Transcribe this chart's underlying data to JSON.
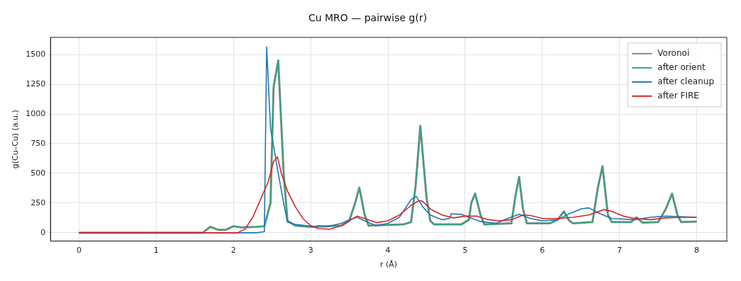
{
  "chart_data": {
    "type": "line",
    "title": "Cu MRO — pairwise g(r)",
    "xlabel": "r (Å)",
    "ylabel": "g(Cu–Cu) (a.u.)",
    "xlim": [
      -0.37,
      8.39
    ],
    "ylim": [
      -70,
      1645
    ],
    "xticks": [
      0,
      1,
      2,
      3,
      4,
      5,
      6,
      7,
      8
    ],
    "yticks": [
      0,
      250,
      500,
      750,
      1000,
      1250,
      1500
    ],
    "grid": true,
    "legend": "top right",
    "marker": "none",
    "line_style": "solid",
    "series": [
      {
        "name": "Voronoi",
        "color": "#888888",
        "x": [
          0,
          1.6,
          1.7,
          1.8,
          1.9,
          2.0,
          2.1,
          2.3,
          2.4,
          2.48,
          2.52,
          2.58,
          2.65,
          2.7,
          2.8,
          3.0,
          3.4,
          3.5,
          3.58,
          3.63,
          3.7,
          3.75,
          4.2,
          4.3,
          4.36,
          4.42,
          4.5,
          4.55,
          4.6,
          4.95,
          5.05,
          5.08,
          5.13,
          5.2,
          5.25,
          5.6,
          5.65,
          5.7,
          5.75,
          5.8,
          6.1,
          6.2,
          6.28,
          6.35,
          6.4,
          6.65,
          6.72,
          6.78,
          6.85,
          6.9,
          7.15,
          7.22,
          7.3,
          7.5,
          7.6,
          7.68,
          7.75,
          7.8,
          8.0
        ],
        "values": [
          0,
          0,
          50,
          25,
          25,
          55,
          45,
          50,
          55,
          250,
          1230,
          1450,
          500,
          100,
          60,
          50,
          60,
          100,
          260,
          380,
          150,
          60,
          70,
          90,
          400,
          900,
          300,
          100,
          70,
          70,
          110,
          250,
          330,
          150,
          70,
          80,
          300,
          470,
          200,
          80,
          80,
          110,
          180,
          100,
          80,
          90,
          380,
          560,
          150,
          90,
          90,
          130,
          85,
          90,
          200,
          330,
          150,
          90,
          95
        ]
      },
      {
        "name": "after orient",
        "color": "#2ca87a",
        "x": [
          0,
          1.6,
          1.7,
          1.8,
          1.9,
          2.0,
          2.1,
          2.3,
          2.4,
          2.48,
          2.52,
          2.58,
          2.65,
          2.7,
          2.8,
          3.0,
          3.4,
          3.5,
          3.58,
          3.63,
          3.7,
          3.75,
          4.2,
          4.3,
          4.36,
          4.42,
          4.5,
          4.55,
          4.6,
          4.95,
          5.05,
          5.08,
          5.13,
          5.2,
          5.25,
          5.6,
          5.65,
          5.7,
          5.75,
          5.8,
          6.1,
          6.2,
          6.28,
          6.35,
          6.4,
          6.65,
          6.72,
          6.78,
          6.85,
          6.9,
          7.15,
          7.22,
          7.3,
          7.5,
          7.6,
          7.68,
          7.75,
          7.8,
          8.0
        ],
        "values": [
          0,
          0,
          50,
          25,
          25,
          55,
          45,
          50,
          55,
          250,
          1230,
          1450,
          500,
          100,
          60,
          50,
          60,
          100,
          260,
          380,
          150,
          60,
          70,
          90,
          400,
          900,
          300,
          100,
          70,
          70,
          110,
          250,
          330,
          150,
          70,
          80,
          300,
          470,
          200,
          80,
          80,
          110,
          180,
          100,
          80,
          90,
          380,
          560,
          150,
          90,
          90,
          130,
          85,
          90,
          200,
          330,
          150,
          90,
          95
        ]
      },
      {
        "name": "after cleanup",
        "color": "#1f77b4",
        "x": [
          0,
          2.3,
          2.4,
          2.43,
          2.48,
          2.58,
          2.65,
          2.7,
          2.8,
          3.0,
          3.05,
          3.1,
          3.2,
          3.4,
          3.5,
          3.6,
          3.7,
          3.85,
          4.0,
          4.15,
          4.3,
          4.37,
          4.45,
          4.55,
          4.7,
          4.8,
          4.82,
          4.95,
          5.05,
          5.2,
          5.4,
          5.55,
          5.7,
          5.85,
          6.0,
          6.2,
          6.35,
          6.5,
          6.6,
          6.75,
          6.9,
          7.2,
          7.4,
          7.6,
          8.0
        ],
        "values": [
          0,
          0,
          10,
          1565,
          880,
          500,
          250,
          90,
          70,
          55,
          50,
          60,
          50,
          80,
          110,
          130,
          100,
          60,
          80,
          130,
          280,
          305,
          220,
          150,
          110,
          120,
          160,
          155,
          130,
          95,
          80,
          120,
          155,
          120,
          100,
          110,
          160,
          200,
          210,
          160,
          120,
          110,
          130,
          140,
          130
        ]
      },
      {
        "name": "after FIRE",
        "color": "#d62728",
        "x": [
          0,
          2.05,
          2.15,
          2.25,
          2.35,
          2.45,
          2.52,
          2.57,
          2.62,
          2.7,
          2.8,
          2.9,
          3.0,
          3.1,
          3.25,
          3.4,
          3.5,
          3.6,
          3.7,
          3.85,
          4.0,
          4.15,
          4.3,
          4.4,
          4.45,
          4.55,
          4.7,
          4.85,
          5.0,
          5.15,
          5.3,
          5.45,
          5.6,
          5.75,
          5.85,
          6.0,
          6.2,
          6.4,
          6.6,
          6.8,
          6.9,
          7.05,
          7.2,
          7.4,
          7.6,
          7.8,
          8.0
        ],
        "values": [
          0,
          0,
          30,
          130,
          280,
          430,
          600,
          640,
          500,
          350,
          220,
          120,
          60,
          35,
          30,
          60,
          100,
          140,
          120,
          85,
          100,
          150,
          230,
          270,
          265,
          200,
          150,
          125,
          140,
          140,
          110,
          100,
          110,
          150,
          145,
          120,
          120,
          130,
          150,
          195,
          180,
          140,
          120,
          110,
          125,
          130,
          130
        ]
      }
    ]
  }
}
